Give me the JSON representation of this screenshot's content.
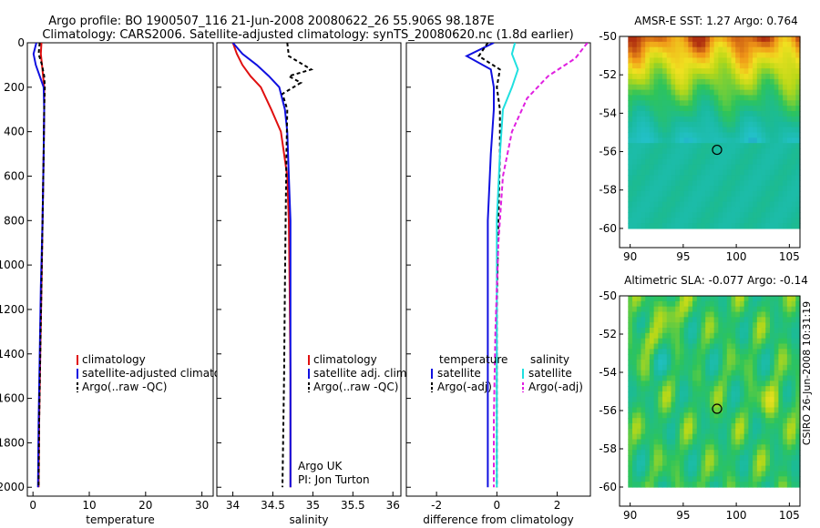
{
  "header": {
    "line1": "Argo profile: BO 1900507_116 21-Jun-2008 20080622_26 55.906S 98.187E",
    "line2": "Climatology: CARS2006. Satellite-adjusted climatology: synTS_20080620.nc (1.8d earlier)"
  },
  "credit": "CSIRO 26-Jun-2008 10:31:19",
  "colors": {
    "climatology": "#e01010",
    "satellite": "#1010e0",
    "argo": "#000000",
    "salinity_satellite": "#20e0e0",
    "salinity_argo": "#e020e0",
    "marker": "#000000"
  },
  "chart_data": [
    {
      "type": "line",
      "xlabel": "temperature",
      "ylabel": "",
      "xlim": [
        -1,
        32
      ],
      "ylim": [
        2040,
        0
      ],
      "xticks": [
        0,
        10,
        20,
        30
      ],
      "yticks": [
        0,
        200,
        400,
        600,
        800,
        1000,
        1200,
        1400,
        1600,
        1800,
        2000
      ],
      "legend": [
        "climatology",
        "satellite-adjusted climatology",
        "Argo(..raw -QC)"
      ],
      "legend_position": "lower-right",
      "series": [
        {
          "name": "climatology",
          "color": "#e01010",
          "dash": "",
          "x": [
            1.5,
            1.4,
            1.6,
            1.8,
            2.0,
            2.0,
            1.9,
            1.7,
            1.5,
            1.3,
            1.1,
            1.0
          ],
          "y": [
            0,
            50,
            100,
            150,
            200,
            300,
            500,
            800,
            1100,
            1400,
            1700,
            2000
          ]
        },
        {
          "name": "satellite-adjusted climatology",
          "color": "#1010e0",
          "dash": "",
          "x": [
            0.6,
            0.1,
            0.5,
            1.2,
            1.9,
            2.0,
            1.9,
            1.7,
            1.4,
            1.2,
            1.0,
            0.9
          ],
          "y": [
            0,
            50,
            100,
            150,
            200,
            300,
            500,
            800,
            1100,
            1400,
            1700,
            2000
          ]
        },
        {
          "name": "Argo(..raw -QC)",
          "color": "#000000",
          "dash": "4,3",
          "x": [
            1.2,
            1.0,
            1.6,
            2.0,
            2.1,
            2.0,
            1.9,
            1.7,
            1.5,
            1.3,
            1.1,
            1.0
          ],
          "y": [
            0,
            50,
            100,
            150,
            200,
            300,
            500,
            800,
            1100,
            1400,
            1700,
            2000
          ]
        }
      ]
    },
    {
      "type": "line",
      "xlabel": "salinity",
      "xlim": [
        33.8,
        36.1
      ],
      "ylim": [
        2040,
        0
      ],
      "xticks": [
        34,
        34.5,
        35,
        35.5,
        36
      ],
      "xticklabels": [
        "34",
        "34.5",
        "35",
        "35.5",
        "36"
      ],
      "legend": [
        "climatology",
        "satellite adj. clim.",
        "Argo(..raw -QC)"
      ],
      "legend_position": "lower-right",
      "annotation": [
        "Argo UK",
        "PI: Jon Turton"
      ],
      "series": [
        {
          "name": "climatology",
          "color": "#e01010",
          "dash": "",
          "x": [
            34.0,
            34.05,
            34.12,
            34.22,
            34.35,
            34.48,
            34.6,
            34.68,
            34.7,
            34.71,
            34.72,
            34.72
          ],
          "y": [
            0,
            50,
            100,
            150,
            200,
            300,
            400,
            600,
            800,
            1100,
            1500,
            2000
          ]
        },
        {
          "name": "satellite adj. clim.",
          "color": "#1010e0",
          "dash": "",
          "x": [
            34.0,
            34.12,
            34.3,
            34.45,
            34.58,
            34.65,
            34.68,
            34.7,
            34.72,
            34.72,
            34.72,
            34.72
          ],
          "y": [
            0,
            50,
            100,
            150,
            200,
            300,
            400,
            600,
            800,
            1100,
            1500,
            2000
          ]
        },
        {
          "name": "Argo(..raw -QC)",
          "color": "#000000",
          "dash": "4,3",
          "x": [
            34.68,
            34.7,
            34.98,
            34.7,
            34.85,
            34.62,
            34.68,
            34.67,
            34.66,
            34.65,
            34.64,
            34.62
          ],
          "y": [
            0,
            60,
            120,
            150,
            180,
            230,
            300,
            500,
            800,
            1100,
            1500,
            2000
          ]
        }
      ]
    },
    {
      "type": "line",
      "xlabel": "difference from climatology",
      "xlim": [
        -3,
        3.1
      ],
      "ylim": [
        2040,
        0
      ],
      "xticks": [
        -2,
        0,
        2
      ],
      "legend_groups": [
        {
          "title": "temperature",
          "items": [
            "satellite",
            "Argo(-adj)"
          ]
        },
        {
          "title": "salinity",
          "items": [
            "satellite",
            "Argo(-adj)"
          ]
        }
      ],
      "legend_position": "lower-right",
      "series": [
        {
          "name": "temperature satellite",
          "color": "#1010e0",
          "dash": "",
          "x": [
            -0.1,
            -1.0,
            -0.2,
            -0.1,
            -0.1,
            -0.2,
            -0.3,
            -0.3,
            -0.3,
            -0.3
          ],
          "y": [
            0,
            60,
            120,
            200,
            300,
            500,
            800,
            1200,
            1600,
            2000
          ]
        },
        {
          "name": "temperature Argo(-adj)",
          "color": "#000000",
          "dash": "4,3",
          "x": [
            -0.3,
            -0.6,
            0.1,
            0.0,
            0.1,
            0.1,
            0.05,
            0.0,
            0.0,
            0.0
          ],
          "y": [
            0,
            60,
            120,
            200,
            300,
            500,
            800,
            1200,
            1600,
            2000
          ]
        },
        {
          "name": "salinity satellite",
          "color": "#20e0e0",
          "dash": "",
          "x": [
            0.6,
            0.5,
            0.7,
            0.5,
            0.2,
            0.1,
            0.0,
            0.0,
            0.0,
            0.0
          ],
          "y": [
            0,
            50,
            120,
            200,
            300,
            500,
            800,
            1200,
            1600,
            2000
          ]
        },
        {
          "name": "salinity Argo(-adj)",
          "color": "#e020e0",
          "dash": "5,3",
          "x": [
            3.0,
            2.6,
            1.7,
            1.0,
            0.5,
            0.2,
            0.05,
            -0.05,
            -0.1,
            -0.1
          ],
          "y": [
            0,
            70,
            150,
            250,
            400,
            600,
            900,
            1300,
            1700,
            2000
          ]
        }
      ]
    },
    {
      "type": "heatmap",
      "title": "AMSR-E SST: 1.27 Argo: 0.764",
      "xlim": [
        89,
        106
      ],
      "ylim": [
        -61,
        -50
      ],
      "xticks": [
        90,
        95,
        100,
        105
      ],
      "yticks": [
        -50,
        -52,
        -54,
        -56,
        -58,
        -60
      ],
      "marker": {
        "lon": 98.187,
        "lat": -55.906
      }
    },
    {
      "type": "heatmap",
      "title": "Altimetric SLA: -0.077 Argo: -0.14",
      "xlim": [
        89,
        106
      ],
      "ylim": [
        -61,
        -50
      ],
      "xticks": [
        90,
        95,
        100,
        105
      ],
      "yticks": [
        -50,
        -52,
        -54,
        -56,
        -58,
        -60
      ],
      "marker": {
        "lon": 98.187,
        "lat": -55.906
      }
    }
  ]
}
